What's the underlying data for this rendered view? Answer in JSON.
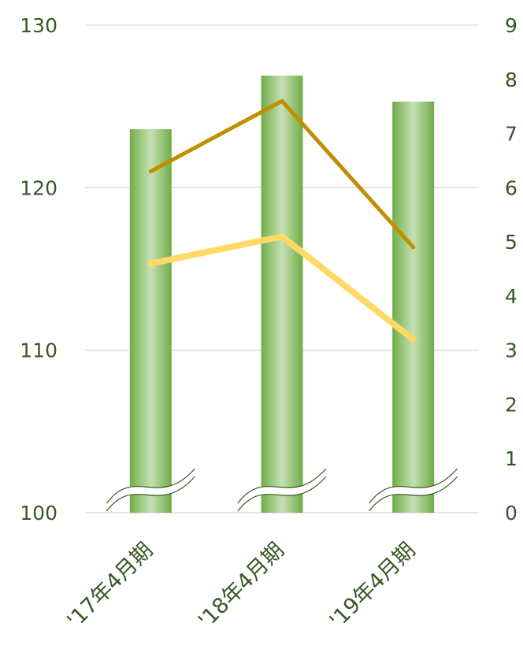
{
  "chart_data": {
    "type": "bar",
    "categories": [
      "'17年4月期",
      "'18年4月期",
      "'19年4月期"
    ],
    "ylim": [
      100,
      130
    ],
    "yticks": [
      100,
      110,
      120,
      130
    ],
    "y2lim": [
      0,
      9
    ],
    "y2ticks": [
      0,
      1,
      2,
      3,
      4,
      5,
      6,
      7,
      8,
      9
    ],
    "axis_break": true,
    "grid": true,
    "series": [
      {
        "type": "bar",
        "axis": "left",
        "values": [
          123.6,
          126.9,
          125.3
        ],
        "color": "#70ad47"
      },
      {
        "type": "line",
        "axis": "right",
        "values": [
          6.3,
          7.6,
          4.9
        ],
        "color": "#bf8f00"
      },
      {
        "type": "line",
        "axis": "right",
        "values": [
          4.6,
          5.1,
          3.2
        ],
        "color": "#ffd966"
      }
    ]
  }
}
